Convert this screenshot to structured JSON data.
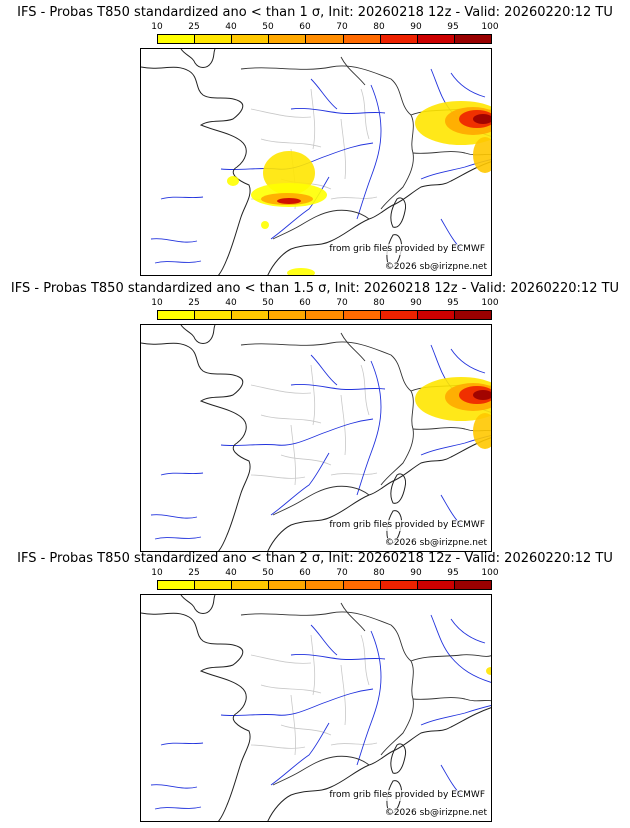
{
  "scale": {
    "labels": [
      "10",
      "25",
      "40",
      "50",
      "60",
      "70",
      "80",
      "90",
      "95",
      "100"
    ],
    "colors": [
      "#ffff00",
      "#ffe600",
      "#ffc800",
      "#ffa800",
      "#ff8c00",
      "#ff6a00",
      "#ee2200",
      "#cc0000",
      "#990000"
    ]
  },
  "panels": [
    {
      "title": "IFS - Probas T850  standardized ano < than 1 σ, Init: 20260218 12z - Valid: 20260220:12 TU",
      "source_credit": "from grib files provided by ECMWF",
      "copyright": "©2026 sb@irizpne.net",
      "probability_areas": [
        "northeast-alps",
        "southwest-aquitaine"
      ]
    },
    {
      "title": "IFS - Probas T850  standardized ano < than 1.5 σ, Init: 20260218 12z - Valid: 20260220:12 TU",
      "source_credit": "from grib files provided by ECMWF",
      "copyright": "©2026 sb@irizpne.net",
      "probability_areas": [
        "northeast-alps"
      ]
    },
    {
      "title": "IFS - Probas T850  standardized ano < than 2 σ, Init: 20260218 12z - Valid: 20260220:12 TU",
      "source_credit": "from grib files provided by ECMWF",
      "copyright": "©2026 sb@irizpne.net",
      "probability_areas": [
        "east-edge-small"
      ]
    }
  ]
}
